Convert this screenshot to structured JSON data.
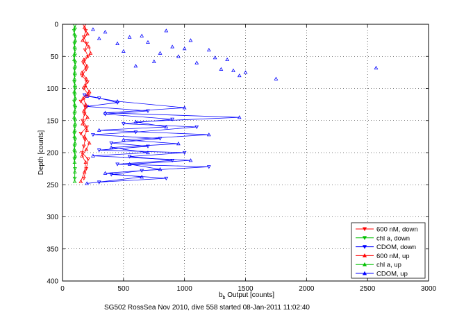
{
  "chart_data": {
    "type": "scatter",
    "title": "",
    "xlabel_main": "b",
    "xlabel_sub": "b",
    "xlabel_rest": " Output [counts]",
    "ylabel": "Depth [counts]",
    "footer": "SG502 RossSea Nov 2010, dive 558 started 08-Jan-2011 11:02:40",
    "xlim": [
      0,
      3000
    ],
    "ylim": [
      0,
      400
    ],
    "y_reversed": true,
    "grid": true,
    "legend_position": "bottom-right",
    "x_ticks": [
      "0",
      "500",
      "1000",
      "1500",
      "2000",
      "2500",
      "3000"
    ],
    "y_ticks": [
      "0",
      "50",
      "100",
      "150",
      "200",
      "250",
      "300",
      "350",
      "400"
    ],
    "series": [
      {
        "name": "600 nM, down",
        "color": "#ff0000",
        "marker": "triangle-down",
        "line": true,
        "x": [
          180,
          190,
          175,
          200,
          185,
          210,
          170,
          195,
          160,
          205,
          175,
          215,
          150,
          190,
          180,
          165,
          200,
          150,
          185,
          175,
          160,
          210,
          195,
          175
        ],
        "y": [
          2,
          10,
          20,
          30,
          40,
          50,
          60,
          70,
          80,
          90,
          100,
          110,
          120,
          130,
          140,
          150,
          160,
          170,
          180,
          190,
          200,
          210,
          225,
          240
        ]
      },
      {
        "name": "chl a, down",
        "color": "#00c000",
        "marker": "triangle-down",
        "line": true,
        "x": [
          100,
          95,
          105,
          98,
          102,
          96,
          104,
          99,
          101,
          97,
          103,
          100,
          96,
          104,
          98,
          102,
          100,
          97,
          103,
          99,
          101,
          98,
          102,
          100
        ],
        "y": [
          2,
          10,
          20,
          30,
          40,
          50,
          60,
          70,
          80,
          90,
          100,
          110,
          120,
          130,
          140,
          150,
          160,
          170,
          180,
          190,
          200,
          210,
          225,
          240
        ]
      },
      {
        "name": "CDOM, down",
        "color": "#0000ff",
        "marker": "triangle-down",
        "line": true,
        "x": [
          180,
          300,
          450,
          200,
          700,
          350,
          900,
          500,
          1100,
          600,
          250,
          800,
          400,
          700,
          300,
          1000,
          550,
          900,
          450,
          1200,
          650,
          400,
          850,
          300
        ],
        "y": [
          110,
          115,
          122,
          128,
          135,
          140,
          148,
          155,
          160,
          168,
          172,
          178,
          185,
          190,
          196,
          200,
          206,
          212,
          218,
          222,
          228,
          234,
          240,
          246
        ]
      },
      {
        "name": "600 nM, up",
        "color": "#ff0000",
        "marker": "triangle-up",
        "line": true,
        "x": [
          180,
          205,
          165,
          215,
          230,
          175,
          200,
          160,
          195,
          185,
          220,
          170,
          190,
          175,
          205,
          165,
          200,
          180,
          220,
          195,
          160,
          190,
          180,
          150
        ],
        "y": [
          5,
          15,
          25,
          35,
          45,
          55,
          65,
          75,
          85,
          95,
          105,
          115,
          125,
          135,
          145,
          155,
          165,
          175,
          185,
          195,
          205,
          215,
          230,
          245
        ]
      },
      {
        "name": "chl a, up",
        "color": "#00c000",
        "marker": "triangle-up",
        "line": true,
        "x": [
          102,
          97,
          104,
          99,
          101,
          96,
          103,
          100,
          98,
          102,
          97,
          104,
          99,
          101,
          96,
          103,
          100,
          98,
          102,
          97,
          104,
          99,
          101,
          100
        ],
        "y": [
          5,
          15,
          25,
          35,
          45,
          55,
          65,
          75,
          85,
          95,
          105,
          115,
          125,
          135,
          145,
          155,
          165,
          175,
          185,
          195,
          205,
          215,
          230,
          245
        ]
      },
      {
        "name": "CDOM, up",
        "color": "#0000ff",
        "marker": "triangle-up",
        "line": false,
        "x": [
          250,
          350,
          550,
          700,
          900,
          1050,
          1200,
          1350,
          1500,
          1750,
          2570,
          450,
          800,
          1100,
          1300,
          950,
          650,
          1450,
          600,
          300,
          1000,
          850,
          1250,
          500,
          750,
          1400
        ],
        "y": [
          8,
          12,
          20,
          28,
          35,
          25,
          40,
          55,
          75,
          85,
          68,
          30,
          45,
          60,
          70,
          50,
          18,
          80,
          65,
          22,
          38,
          10,
          52,
          42,
          58,
          72
        ]
      },
      {
        "name": "CDOM, up",
        "color": "#0000ff",
        "marker": "triangle-up",
        "line": true,
        "x": [
          200,
          450,
          1000,
          350,
          1450,
          600,
          850,
          300,
          1200,
          500,
          950,
          400,
          700,
          250,
          1050,
          550,
          800,
          350,
          650,
          200
        ],
        "y": [
          112,
          120,
          130,
          138,
          145,
          152,
          160,
          165,
          172,
          180,
          186,
          192,
          200,
          205,
          212,
          218,
          226,
          232,
          238,
          248
        ]
      }
    ]
  }
}
